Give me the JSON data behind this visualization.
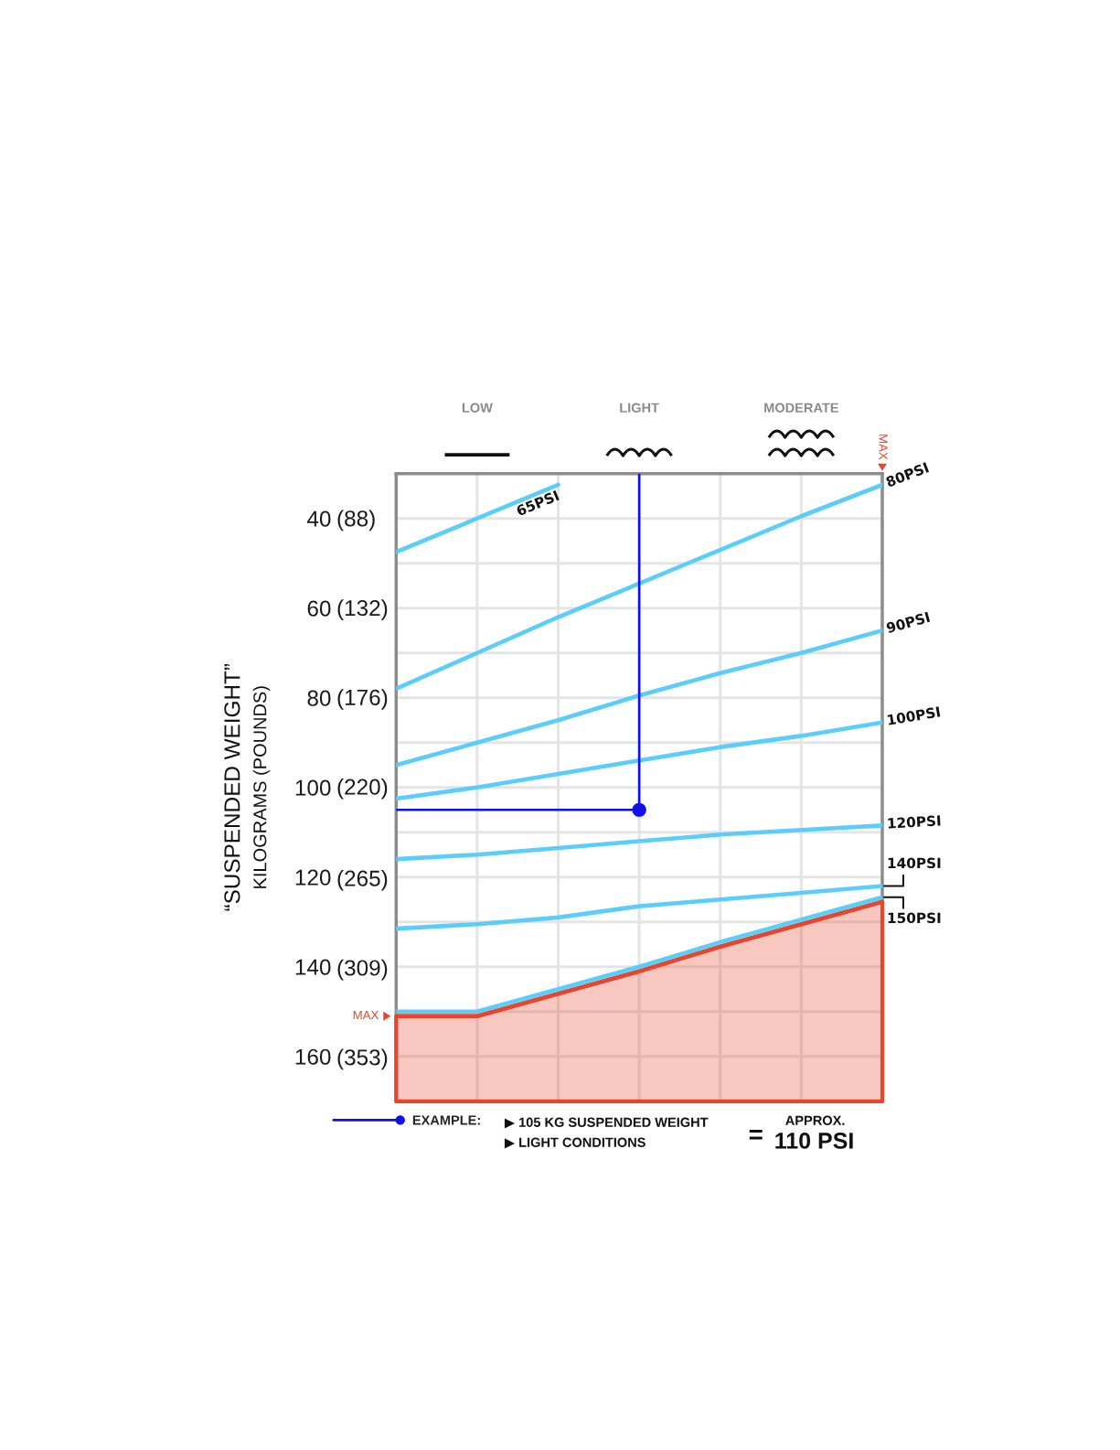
{
  "chart_data": {
    "type": "line",
    "ylabel": "“SUSPENDED WEIGHT”\nKILOGRAMS (POUNDS)",
    "categories": [
      null,
      "LOW",
      null,
      "LIGHT",
      null,
      "MODERATE",
      null
    ],
    "ylim": [
      170,
      30
    ],
    "yticks": [
      40,
      {
        "value": 50,
        "label": null
      },
      60,
      {
        "value": 70,
        "label": null
      },
      80,
      {
        "value": 90,
        "label": null
      },
      100,
      {
        "value": 110,
        "label": null
      },
      120,
      {
        "value": 130,
        "label": null
      },
      140,
      {
        "value": 150,
        "label": null
      },
      160
    ],
    "y2lim": [
      374.8,
      66.1
    ],
    "y2ticks": [
      {
        "value": 88,
        "label": "(88)"
      },
      {
        "value": 132,
        "label": "(132)"
      },
      {
        "value": 176,
        "label": "(176)"
      },
      {
        "value": 220,
        "label": "(220)"
      },
      {
        "value": 265,
        "label": "(265)"
      },
      {
        "value": 309,
        "label": "(309)"
      },
      {
        "value": 353,
        "label": "(353)"
      }
    ],
    "grid": true,
    "legend": "bottom left",
    "series": [
      {
        "name": "65PSI",
        "color": "#5bcdfa",
        "values": [
          47.5,
          40,
          32.5,
          null,
          null,
          null,
          null
        ]
      },
      {
        "name": "80PSI",
        "color": "#5bcdfa",
        "values": [
          78,
          70,
          62,
          54.5,
          47,
          39.5,
          32.5
        ]
      },
      {
        "name": "90PSI",
        "color": "#5bcdfa",
        "values": [
          95,
          90,
          85,
          79.5,
          74.5,
          70,
          65
        ]
      },
      {
        "name": "100PSI",
        "color": "#5bcdfa",
        "values": [
          102.5,
          100,
          97,
          94,
          91,
          88.5,
          85.5
        ]
      },
      {
        "name": "120PSI",
        "color": "#5bcdfa",
        "values": [
          116,
          115,
          113.5,
          112,
          110.5,
          109.5,
          108.5
        ]
      },
      {
        "name": "140PSI",
        "color": "#5bcdfa",
        "values": [
          131.5,
          130.5,
          129,
          126.5,
          125,
          123.5,
          122
        ]
      },
      {
        "name": "150PSI",
        "color": "#5bcdfa",
        "values": [
          150,
          150,
          145,
          140,
          134.5,
          129.5,
          124.5
        ]
      },
      {
        "color": "#e8452c",
        "values": [
          151,
          151,
          146,
          141,
          135.5,
          130.5,
          125.5
        ],
        "lower": [
          151,
          151,
          146,
          141,
          135.5,
          130.5,
          125.5
        ],
        "upper": [
          170,
          170,
          170,
          170,
          170,
          170,
          170
        ]
      },
      {
        "name": "EXAMPLE:",
        "color": "#1010e8",
        "values": [
          105,
          105,
          105,
          105,
          null,
          null,
          null
        ]
      },
      {
        "type": "scatter",
        "color": "#1010e8",
        "values": [
          null,
          null,
          null,
          105,
          null,
          null,
          null
        ],
        "marker": "circle",
        "errors": [
          null,
          null,
          null,
          [
            30,
            105
          ],
          null,
          null,
          null
        ]
      }
    ],
    "annotations": [
      "MAX",
      "MAX",
      "▶ 105 KG SUSPENDED WEIGHT",
      "▶ LIGHT CONDITIONS",
      "=",
      "APPROX.",
      "110 PSI"
    ]
  }
}
